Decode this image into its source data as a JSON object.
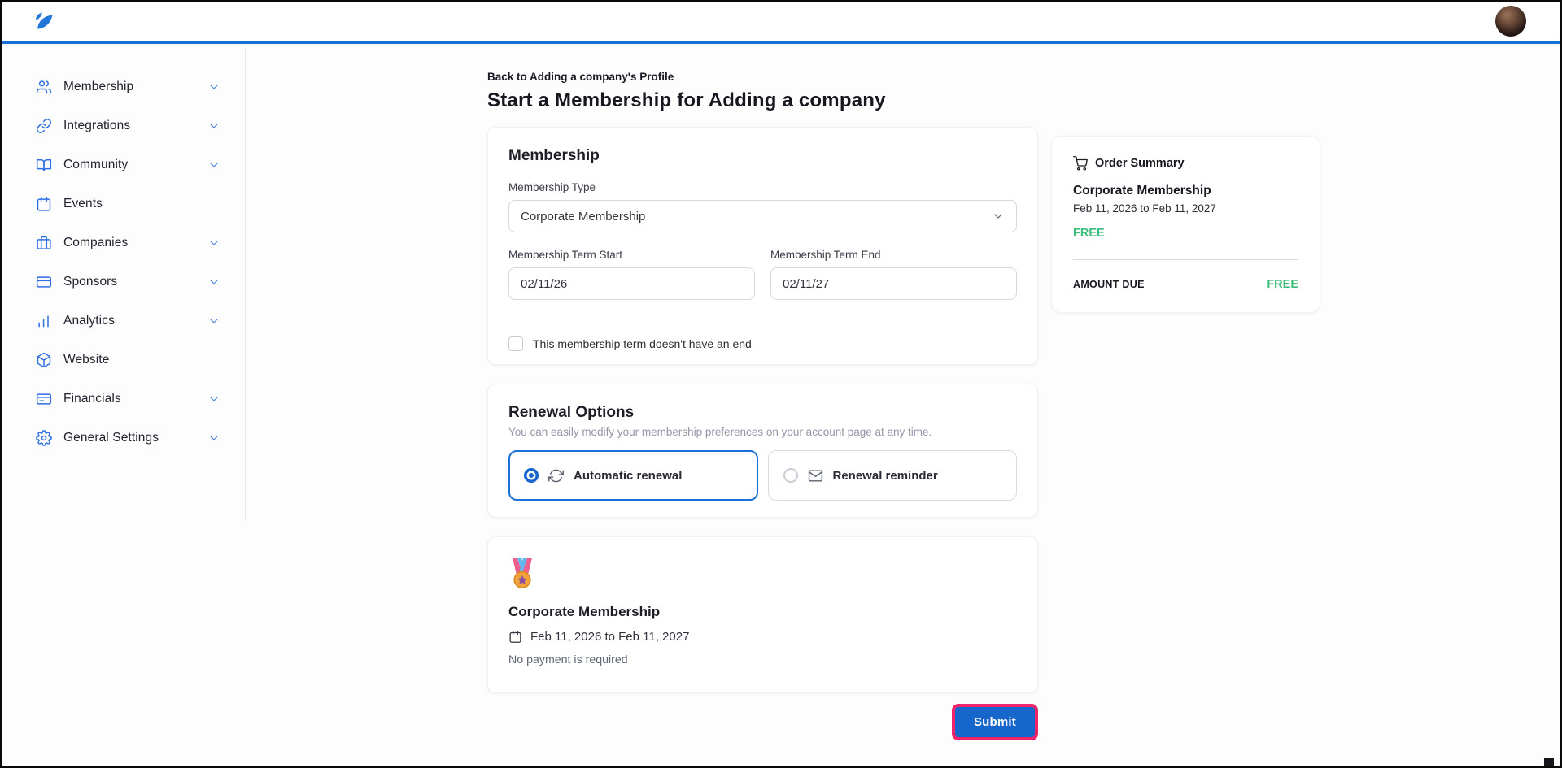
{
  "app": {
    "accent_blue": "#1670d8",
    "icon_blue": "#2f6fe4",
    "green": "#3dbd7a",
    "highlight_pink": "#f0246a",
    "submit_blue": "#1766cb"
  },
  "header": {
    "logo_icon": "app-logo",
    "avatar_icon": "user-avatar"
  },
  "sidebar": {
    "items": [
      {
        "label": "Membership",
        "icon": "users-icon",
        "chevron": true
      },
      {
        "label": "Integrations",
        "icon": "link-icon",
        "chevron": true
      },
      {
        "label": "Community",
        "icon": "book-icon",
        "chevron": true
      },
      {
        "label": "Events",
        "icon": "calendar-icon",
        "chevron": false
      },
      {
        "label": "Companies",
        "icon": "briefcase-icon",
        "chevron": true
      },
      {
        "label": "Sponsors",
        "icon": "credit-card-icon",
        "chevron": true
      },
      {
        "label": "Analytics",
        "icon": "bar-chart-icon",
        "chevron": true
      },
      {
        "label": "Website",
        "icon": "cube-icon",
        "chevron": false
      },
      {
        "label": "Financials",
        "icon": "wallet-card-icon",
        "chevron": true
      },
      {
        "label": "General Settings",
        "icon": "gear-icon",
        "chevron": true
      }
    ]
  },
  "main": {
    "back_link": "Back to Adding a company's Profile",
    "title": "Start a Membership for Adding a company",
    "membership_card": {
      "heading": "Membership",
      "type_label": "Membership Type",
      "type_value": "Corporate Membership",
      "term_start_label": "Membership Term Start",
      "term_start_value": "02/11/26",
      "term_end_label": "Membership Term End",
      "term_end_value": "02/11/27",
      "no_end_checkbox_label": "This membership term doesn't have an end",
      "no_end_checked": false
    },
    "renewal_card": {
      "heading": "Renewal Options",
      "subtitle": "You can easily modify your membership preferences on your account page at any time.",
      "options": [
        {
          "label": "Automatic renewal",
          "icon": "sync-icon",
          "selected": true
        },
        {
          "label": "Renewal reminder",
          "icon": "envelope-icon",
          "selected": false
        }
      ]
    },
    "summary_card": {
      "medal_icon": "medal-icon",
      "heading": "Corporate Membership",
      "term": "Feb 11, 2026 to Feb 11, 2027",
      "note": "No payment is required"
    },
    "submit_label": "Submit"
  },
  "order_summary": {
    "heading": "Order Summary",
    "item_name": "Corporate Membership",
    "item_term": "Feb 11, 2026 to Feb 11, 2027",
    "item_price": "FREE",
    "amount_due_label": "AMOUNT DUE",
    "amount_due_value": "FREE"
  }
}
